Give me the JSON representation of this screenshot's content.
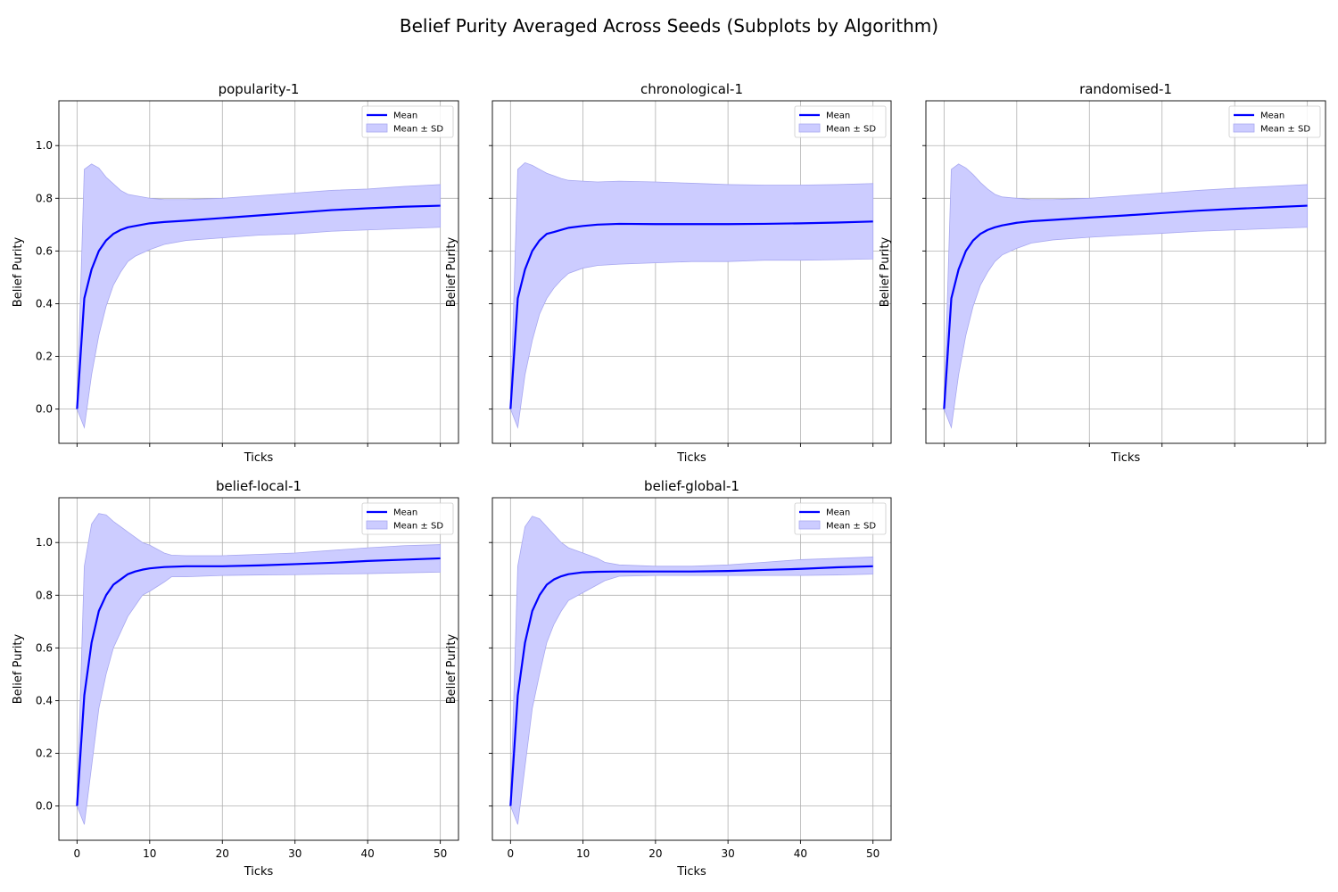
{
  "figure": {
    "title": "Belief Purity Averaged Across Seeds (Subplots by Algorithm)"
  },
  "colors": {
    "mean_line": "#0000ff",
    "band_fill": "#ccccff",
    "band_edge": "#a8a8f0",
    "grid": "#b0b0b0",
    "axis": "#000000"
  },
  "legend": {
    "mean_label": "Mean",
    "band_label": "Mean ± SD",
    "placement": "upper right"
  },
  "chart_data": [
    {
      "type": "line",
      "title": "popularity-1",
      "xlabel": "Ticks",
      "ylabel": "Belief Purity",
      "xlim": [
        -2.5,
        52.5
      ],
      "ylim": [
        -0.13,
        1.17
      ],
      "xticks": [
        "0",
        "10",
        "20",
        "30",
        "40",
        "50"
      ],
      "yticks": [
        "0.0",
        "0.2",
        "0.4",
        "0.6",
        "0.8",
        "1.0"
      ],
      "show_xticklabels": false,
      "show_yticklabels": true,
      "grid": true,
      "legend": "upper right",
      "series": [
        {
          "name": "Mean",
          "x": [
            0,
            1,
            2,
            3,
            4,
            5,
            6,
            7,
            8,
            10,
            12,
            15,
            20,
            25,
            30,
            35,
            40,
            45,
            50
          ],
          "y": [
            0.0,
            0.42,
            0.53,
            0.6,
            0.64,
            0.665,
            0.68,
            0.69,
            0.695,
            0.705,
            0.71,
            0.715,
            0.725,
            0.735,
            0.745,
            0.755,
            0.762,
            0.768,
            0.772
          ]
        },
        {
          "name": "Mean ± SD",
          "x": [
            0,
            1,
            2,
            3,
            4,
            5,
            6,
            7,
            8,
            10,
            12,
            15,
            20,
            25,
            30,
            35,
            40,
            45,
            50
          ],
          "lower": [
            0.0,
            -0.07,
            0.13,
            0.28,
            0.39,
            0.47,
            0.52,
            0.56,
            0.58,
            0.605,
            0.625,
            0.64,
            0.65,
            0.66,
            0.665,
            0.675,
            0.68,
            0.685,
            0.69
          ],
          "upper": [
            0.0,
            0.91,
            0.93,
            0.915,
            0.88,
            0.855,
            0.83,
            0.815,
            0.81,
            0.8,
            0.795,
            0.795,
            0.8,
            0.81,
            0.82,
            0.83,
            0.835,
            0.845,
            0.852
          ]
        }
      ]
    },
    {
      "type": "line",
      "title": "chronological-1",
      "xlabel": "Ticks",
      "ylabel": "Belief Purity",
      "xlim": [
        -2.5,
        52.5
      ],
      "ylim": [
        -0.13,
        1.17
      ],
      "xticks": [
        "0",
        "10",
        "20",
        "30",
        "40",
        "50"
      ],
      "yticks": [
        "0.0",
        "0.2",
        "0.4",
        "0.6",
        "0.8",
        "1.0"
      ],
      "show_xticklabels": false,
      "show_yticklabels": false,
      "grid": true,
      "legend": "upper right",
      "series": [
        {
          "name": "Mean",
          "x": [
            0,
            1,
            2,
            3,
            4,
            5,
            6,
            7,
            8,
            10,
            12,
            15,
            20,
            25,
            30,
            35,
            40,
            45,
            50
          ],
          "y": [
            0.0,
            0.42,
            0.53,
            0.6,
            0.64,
            0.665,
            0.672,
            0.68,
            0.688,
            0.695,
            0.7,
            0.703,
            0.702,
            0.702,
            0.702,
            0.703,
            0.705,
            0.708,
            0.712
          ]
        },
        {
          "name": "Mean ± SD",
          "x": [
            0,
            1,
            2,
            3,
            4,
            5,
            6,
            7,
            8,
            10,
            12,
            15,
            20,
            25,
            30,
            35,
            40,
            45,
            50
          ],
          "lower": [
            0.0,
            -0.07,
            0.13,
            0.26,
            0.36,
            0.42,
            0.46,
            0.49,
            0.515,
            0.535,
            0.545,
            0.55,
            0.555,
            0.56,
            0.56,
            0.565,
            0.565,
            0.567,
            0.57
          ],
          "upper": [
            0.0,
            0.91,
            0.935,
            0.925,
            0.91,
            0.895,
            0.885,
            0.875,
            0.868,
            0.865,
            0.862,
            0.865,
            0.862,
            0.857,
            0.852,
            0.85,
            0.85,
            0.852,
            0.856
          ]
        }
      ]
    },
    {
      "type": "line",
      "title": "randomised-1",
      "xlabel": "Ticks",
      "ylabel": "Belief Purity",
      "xlim": [
        -2.5,
        52.5
      ],
      "ylim": [
        -0.13,
        1.17
      ],
      "xticks": [
        "0",
        "10",
        "20",
        "30",
        "40",
        "50"
      ],
      "yticks": [
        "0.0",
        "0.2",
        "0.4",
        "0.6",
        "0.8",
        "1.0"
      ],
      "show_xticklabels": false,
      "show_yticklabels": false,
      "grid": true,
      "legend": "upper right",
      "series": [
        {
          "name": "Mean",
          "x": [
            0,
            1,
            2,
            3,
            4,
            5,
            6,
            7,
            8,
            10,
            12,
            15,
            20,
            25,
            30,
            35,
            40,
            45,
            50
          ],
          "y": [
            0.0,
            0.42,
            0.53,
            0.6,
            0.64,
            0.665,
            0.68,
            0.69,
            0.697,
            0.707,
            0.713,
            0.718,
            0.727,
            0.735,
            0.744,
            0.753,
            0.76,
            0.766,
            0.772
          ]
        },
        {
          "name": "Mean ± SD",
          "x": [
            0,
            1,
            2,
            3,
            4,
            5,
            6,
            7,
            8,
            10,
            12,
            15,
            20,
            25,
            30,
            35,
            40,
            45,
            50
          ],
          "lower": [
            0.0,
            -0.07,
            0.13,
            0.28,
            0.39,
            0.47,
            0.52,
            0.56,
            0.585,
            0.61,
            0.63,
            0.642,
            0.652,
            0.66,
            0.667,
            0.675,
            0.68,
            0.685,
            0.69
          ],
          "upper": [
            0.0,
            0.91,
            0.93,
            0.915,
            0.89,
            0.86,
            0.835,
            0.815,
            0.805,
            0.8,
            0.795,
            0.795,
            0.8,
            0.81,
            0.82,
            0.83,
            0.838,
            0.845,
            0.852
          ]
        }
      ]
    },
    {
      "type": "line",
      "title": "belief-local-1",
      "xlabel": "Ticks",
      "ylabel": "Belief Purity",
      "xlim": [
        -2.5,
        52.5
      ],
      "ylim": [
        -0.13,
        1.17
      ],
      "xticks": [
        "0",
        "10",
        "20",
        "30",
        "40",
        "50"
      ],
      "yticks": [
        "0.0",
        "0.2",
        "0.4",
        "0.6",
        "0.8",
        "1.0"
      ],
      "show_xticklabels": true,
      "show_yticklabels": true,
      "grid": true,
      "legend": "upper right",
      "series": [
        {
          "name": "Mean",
          "x": [
            0,
            1,
            2,
            3,
            4,
            5,
            6,
            7,
            8,
            9,
            10,
            12,
            15,
            20,
            25,
            30,
            35,
            40,
            45,
            50
          ],
          "y": [
            0.0,
            0.42,
            0.62,
            0.74,
            0.8,
            0.84,
            0.86,
            0.88,
            0.89,
            0.897,
            0.902,
            0.907,
            0.91,
            0.91,
            0.913,
            0.918,
            0.923,
            0.93,
            0.935,
            0.94
          ]
        },
        {
          "name": "Mean ± SD",
          "x": [
            0,
            1,
            2,
            3,
            4,
            5,
            6,
            7,
            8,
            9,
            10,
            12,
            13,
            15,
            20,
            25,
            30,
            35,
            40,
            45,
            50
          ],
          "lower": [
            0.0,
            -0.07,
            0.15,
            0.37,
            0.5,
            0.6,
            0.66,
            0.72,
            0.76,
            0.8,
            0.815,
            0.85,
            0.87,
            0.87,
            0.875,
            0.877,
            0.878,
            0.88,
            0.882,
            0.885,
            0.888
          ],
          "upper": [
            0.0,
            0.91,
            1.07,
            1.11,
            1.105,
            1.08,
            1.06,
            1.04,
            1.02,
            1.0,
            0.99,
            0.96,
            0.952,
            0.95,
            0.95,
            0.955,
            0.96,
            0.97,
            0.98,
            0.988,
            0.992
          ]
        }
      ]
    },
    {
      "type": "line",
      "title": "belief-global-1",
      "xlabel": "Ticks",
      "ylabel": "Belief Purity",
      "xlim": [
        -2.5,
        52.5
      ],
      "ylim": [
        -0.13,
        1.17
      ],
      "xticks": [
        "0",
        "10",
        "20",
        "30",
        "40",
        "50"
      ],
      "yticks": [
        "0.0",
        "0.2",
        "0.4",
        "0.6",
        "0.8",
        "1.0"
      ],
      "show_xticklabels": true,
      "show_yticklabels": false,
      "grid": true,
      "legend": "upper right",
      "series": [
        {
          "name": "Mean",
          "x": [
            0,
            1,
            2,
            3,
            4,
            5,
            6,
            7,
            8,
            10,
            12,
            15,
            20,
            25,
            30,
            35,
            40,
            45,
            50
          ],
          "y": [
            0.0,
            0.42,
            0.62,
            0.74,
            0.8,
            0.84,
            0.86,
            0.872,
            0.88,
            0.887,
            0.889,
            0.89,
            0.89,
            0.89,
            0.892,
            0.896,
            0.9,
            0.906,
            0.91
          ]
        },
        {
          "name": "Mean ± SD",
          "x": [
            0,
            1,
            2,
            3,
            4,
            5,
            6,
            7,
            8,
            10,
            12,
            13,
            15,
            20,
            25,
            30,
            35,
            40,
            45,
            50
          ],
          "lower": [
            0.0,
            -0.07,
            0.15,
            0.37,
            0.5,
            0.62,
            0.69,
            0.74,
            0.78,
            0.81,
            0.84,
            0.855,
            0.872,
            0.875,
            0.875,
            0.875,
            0.875,
            0.875,
            0.877,
            0.88
          ],
          "upper": [
            0.0,
            0.91,
            1.06,
            1.1,
            1.09,
            1.06,
            1.03,
            1.0,
            0.98,
            0.96,
            0.94,
            0.925,
            0.915,
            0.91,
            0.91,
            0.915,
            0.925,
            0.935,
            0.94,
            0.945
          ]
        }
      ]
    }
  ]
}
